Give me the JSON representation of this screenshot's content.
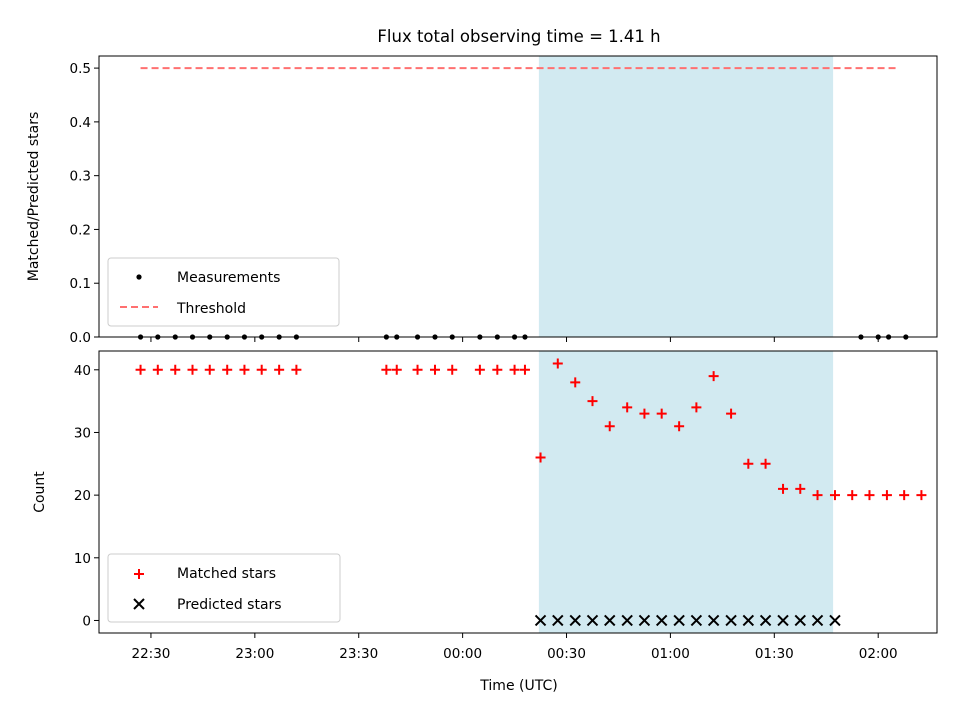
{
  "chart_data": {
    "title": "Flux total observing time = 1.41 h",
    "x_axis": {
      "label": "Time (UTC)",
      "tick_values_hours": [
        22.5,
        23.0,
        23.5,
        24.0,
        24.5,
        25.0,
        25.5,
        26.0
      ],
      "tick_labels": [
        "22:30",
        "23:00",
        "23:30",
        "00:00",
        "00:30",
        "01:00",
        "01:30",
        "02:00"
      ],
      "range_hours": [
        22.25,
        26.283
      ]
    },
    "highlight_span_hours": [
      24.367,
      25.783
    ],
    "colors": {
      "highlight": "#add8e6",
      "measurements": "#000000",
      "threshold": "#ff7070",
      "matched": "#ff0000",
      "predicted": "#000000"
    },
    "panels": [
      {
        "type": "scatter",
        "ylabel": "Matched/Predicted stars",
        "ylim": [
          0.0,
          0.5225
        ],
        "yticks": [
          0.0,
          0.1,
          0.2,
          0.3,
          0.4,
          0.5
        ],
        "ytick_labels": [
          "0.0",
          "0.1",
          "0.2",
          "0.3",
          "0.4",
          "0.5"
        ],
        "legend_position": "lower-left",
        "series": [
          {
            "name": "Measurements",
            "marker": "dot",
            "x_hours": [
              22.45,
              22.533,
              22.617,
              22.7,
              22.783,
              22.867,
              22.95,
              23.033,
              23.117,
              23.2,
              23.633,
              23.683,
              23.783,
              23.867,
              23.95,
              24.083,
              24.167,
              24.25,
              24.3,
              25.917,
              26.0,
              26.05,
              26.133
            ],
            "y": [
              0,
              0,
              0,
              0,
              0,
              0,
              0,
              0,
              0,
              0,
              0,
              0,
              0,
              0,
              0,
              0,
              0,
              0,
              0,
              0,
              0,
              0,
              0
            ]
          },
          {
            "name": "Threshold",
            "marker": "dashed-line",
            "x_hours": [
              22.45,
              26.1
            ],
            "y": [
              0.5,
              0.5
            ]
          }
        ]
      },
      {
        "type": "scatter",
        "ylabel": "Count",
        "ylim": [
          -2,
          43
        ],
        "yticks": [
          0,
          10,
          20,
          30,
          40
        ],
        "ytick_labels": [
          "0",
          "10",
          "20",
          "30",
          "40"
        ],
        "legend_position": "lower-left",
        "series": [
          {
            "name": "Matched stars",
            "marker": "plus",
            "x_hours": [
              22.45,
              22.533,
              22.617,
              22.7,
              22.783,
              22.867,
              22.95,
              23.033,
              23.117,
              23.2,
              23.633,
              23.683,
              23.783,
              23.867,
              23.95,
              24.083,
              24.167,
              24.25,
              24.3,
              24.375,
              24.458,
              24.542,
              24.625,
              24.708,
              24.792,
              24.875,
              24.958,
              25.042,
              25.125,
              25.208,
              25.292,
              25.375,
              25.458,
              25.542,
              25.625,
              25.708,
              25.792,
              25.875,
              25.958,
              26.042,
              26.125,
              26.208
            ],
            "y": [
              40,
              40,
              40,
              40,
              40,
              40,
              40,
              40,
              40,
              40,
              40,
              40,
              40,
              40,
              40,
              40,
              40,
              40,
              40,
              26,
              41,
              38,
              35,
              31,
              34,
              33,
              33,
              31,
              34,
              39,
              33,
              25,
              25,
              21,
              21,
              20,
              20,
              20,
              20,
              20,
              20,
              20
            ]
          },
          {
            "name": "Predicted stars",
            "marker": "x",
            "x_hours": [
              24.375,
              24.458,
              24.542,
              24.625,
              24.708,
              24.792,
              24.875,
              24.958,
              25.042,
              25.125,
              25.208,
              25.292,
              25.375,
              25.458,
              25.542,
              25.625,
              25.708,
              25.792
            ],
            "y": [
              0,
              0,
              0,
              0,
              0,
              0,
              0,
              0,
              0,
              0,
              0,
              0,
              0,
              0,
              0,
              0,
              0,
              0
            ]
          }
        ]
      }
    ]
  }
}
